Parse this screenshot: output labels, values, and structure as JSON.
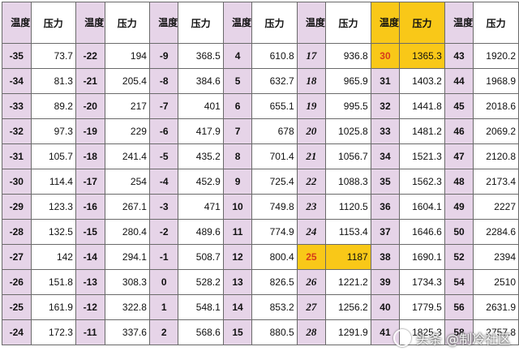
{
  "header": {
    "temp": "温度",
    "pressure": "压力"
  },
  "highlight_color": "#f9c818",
  "highlight_text_color": "#d73b1a",
  "temp_bg_color": "#e6d4e8",
  "columns": [
    {
      "temps": [
        "-35",
        "-34",
        "-33",
        "-32",
        "-31",
        "-30",
        "-29",
        "-28",
        "-27",
        "-26",
        "-25",
        "-24"
      ],
      "pressures": [
        "73.7",
        "81.3",
        "89.2",
        "97.3",
        "105.7",
        "114.4",
        "123.3",
        "132.5",
        "142",
        "151.8",
        "161.9",
        "172.3"
      ]
    },
    {
      "temps": [
        "-22",
        "-21",
        "-20",
        "-19",
        "-18",
        "-17",
        "-16",
        "-15",
        "-14",
        "-13",
        "-12",
        "-11"
      ],
      "pressures": [
        "194",
        "205.4",
        "217",
        "229",
        "241.4",
        "254",
        "267.1",
        "280.4",
        "294.1",
        "308.3",
        "322.8",
        "337.6"
      ]
    },
    {
      "temps": [
        "-9",
        "-8",
        "-7",
        "-6",
        "-5",
        "-4",
        "-3",
        "-2",
        "-1",
        "0",
        "1",
        "2"
      ],
      "pressures": [
        "368.5",
        "384.6",
        "401",
        "417.9",
        "435.2",
        "452.9",
        "471",
        "489.6",
        "508.7",
        "528.2",
        "548.1",
        "568.6"
      ]
    },
    {
      "temps": [
        "4",
        "5",
        "6",
        "7",
        "8",
        "9",
        "10",
        "11",
        "12",
        "13",
        "14",
        "15"
      ],
      "pressures": [
        "610.8",
        "632.7",
        "655.1",
        "678",
        "701.4",
        "725.4",
        "749.8",
        "774.9",
        "800.4",
        "826.5",
        "853.2",
        "880.5"
      ]
    },
    {
      "temps": [
        "17",
        "18",
        "19",
        "20",
        "21",
        "22",
        "23",
        "24",
        "25",
        "26",
        "27",
        "28"
      ],
      "pressures": [
        "936.8",
        "965.9",
        "995.5",
        "1025.8",
        "1056.7",
        "1088.3",
        "1120.5",
        "1153.4",
        "1187",
        "1221.2",
        "1256.2",
        "1291.9"
      ]
    },
    {
      "temps": [
        "30",
        "31",
        "32",
        "33",
        "34",
        "35",
        "36",
        "37",
        "38",
        "39",
        "40",
        "41"
      ],
      "pressures": [
        "1365.3",
        "1403.2",
        "1441.8",
        "1481.2",
        "1521.3",
        "1562.3",
        "1604.1",
        "1646.6",
        "1690.1",
        "1734.3",
        "1779.5",
        "1825.3"
      ]
    },
    {
      "temps": [
        "43",
        "44",
        "45",
        "46",
        "47",
        "48",
        "49",
        "50",
        "52",
        "54",
        "56",
        "58"
      ],
      "pressures": [
        "1920.2",
        "1968.9",
        "2018.6",
        "2069.2",
        "2120.8",
        "2173.4",
        "2227",
        "2284.6",
        "2394",
        "2510",
        "2631.9",
        "2757.8"
      ]
    }
  ],
  "watermark": "头条 @制冷社区"
}
